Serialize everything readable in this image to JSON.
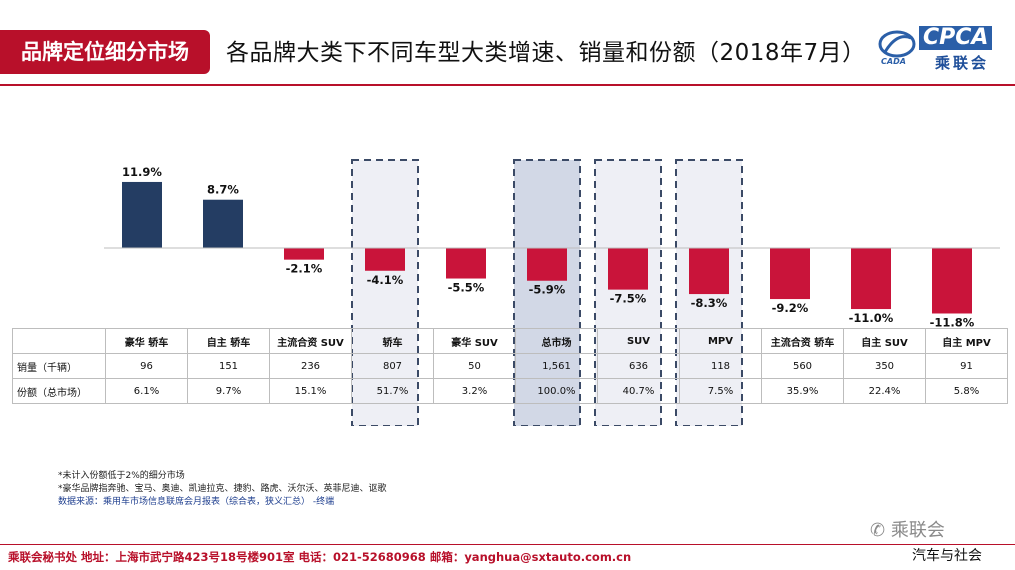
{
  "header": {
    "section_tag": "品牌定位细分市场",
    "title": "各品牌大类下不同车型大类增速、销量和份额（2018年7月）",
    "logo_text": "CPCA",
    "logo_cn": "乘联会",
    "logo_mark_text": "CADA"
  },
  "chart_data": {
    "type": "bar",
    "categories": [
      "豪华 轿车",
      "自主 轿车",
      "主流合资 SUV",
      "轿车",
      "豪华 SUV",
      "总市场",
      "SUV",
      "MPV",
      "主流合资 轿车",
      "自主 SUV",
      "自主 MPV"
    ],
    "values": [
      11.9,
      8.7,
      -2.1,
      -4.1,
      -5.5,
      -5.9,
      -7.5,
      -8.3,
      -9.2,
      -11.0,
      -11.8
    ],
    "value_labels": [
      "11.9%",
      "8.7%",
      "-2.1%",
      "-4.1%",
      "-5.5%",
      "-5.9%",
      "-7.5%",
      "-8.3%",
      "-9.2%",
      "-11.0%",
      "-11.8%"
    ],
    "highlighted": [
      "轿车",
      "总市场",
      "SUV",
      "MPV"
    ],
    "highlight_shaded": [
      "总市场"
    ],
    "colors": {
      "positive": "#243d63",
      "negative": "#c9143a",
      "highlight_fill": "#eeeff5",
      "total_fill": "#d2d8e6",
      "dash": "#3b4a66"
    },
    "grid": false,
    "legend": "none"
  },
  "table": {
    "rows": [
      {
        "label": "销量（千辆）",
        "values": [
          "96",
          "151",
          "236",
          "807",
          "50",
          "1,561",
          "636",
          "118",
          "560",
          "350",
          "91"
        ]
      },
      {
        "label": "份额（总市场）",
        "values": [
          "6.1%",
          "9.7%",
          "15.1%",
          "51.7%",
          "3.2%",
          "100.0%",
          "40.7%",
          "7.5%",
          "35.9%",
          "22.4%",
          "5.8%"
        ]
      }
    ]
  },
  "notes": {
    "line1": "*未计入份额低于2%的细分市场",
    "line2": "*豪华品牌指奔驰、宝马、奥迪、凯迪拉克、捷豹、路虎、沃尔沃、英菲尼迪、讴歌",
    "source": "数据来源：乘用车市场信息联席会月报表（综合表，狭义汇总） -终端"
  },
  "footer": {
    "text": "乘联会秘书处   地址：上海市武宁路423号18号楼901室  电话：021-52680968   邮箱：yanghua@sxtauto.com.cn"
  },
  "watermarks": {
    "wechat": "乘联会",
    "brand": "汽车与社会"
  }
}
